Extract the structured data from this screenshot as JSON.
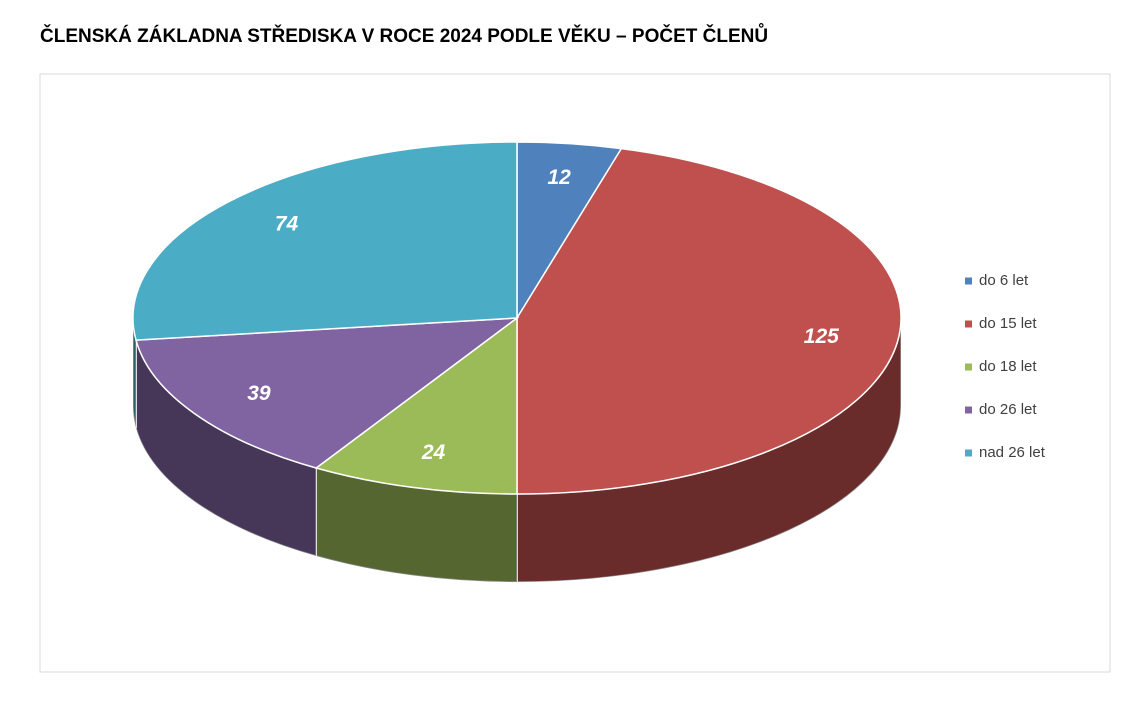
{
  "chart_data": {
    "type": "pie",
    "title": "ČLENSKÁ ZÁKLADNA STŘEDISKA V ROCE 2024 PODLE VĚKU – POČET ČLENŮ",
    "categories": [
      "do 6 let",
      "do 15 let",
      "do 18 let",
      "do 26 let",
      "nad 26 let"
    ],
    "values": [
      12,
      125,
      24,
      39,
      74
    ],
    "colors": [
      "#4f81bd",
      "#c0504d",
      "#9bbb59",
      "#8064a2",
      "#4bacc6"
    ],
    "legend": "right"
  }
}
